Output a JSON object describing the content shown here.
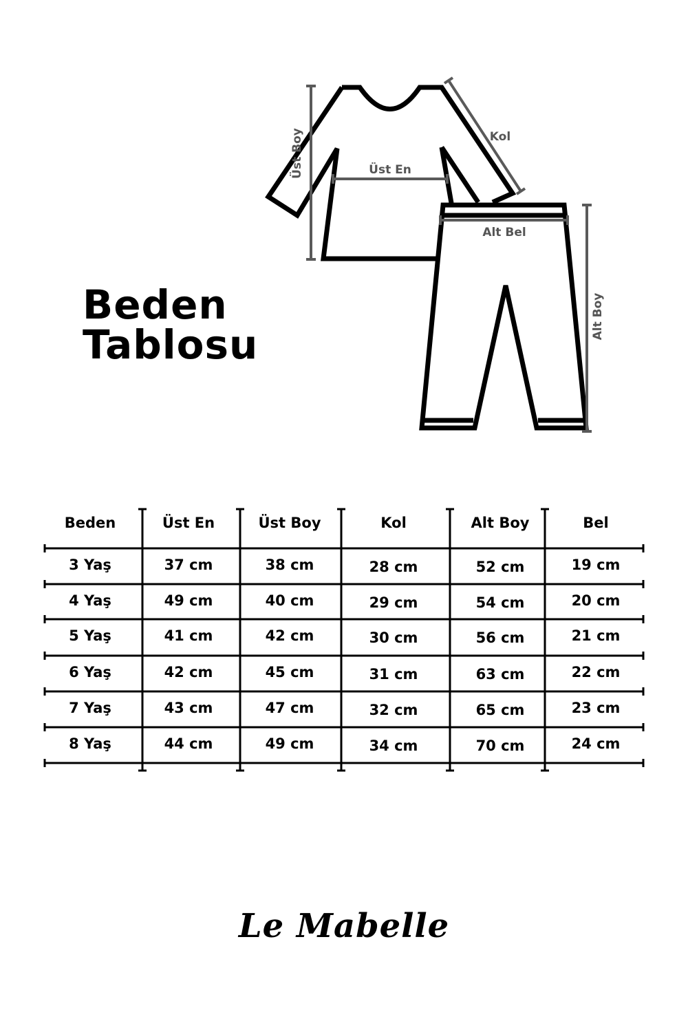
{
  "title": {
    "line1": "Beden",
    "line2": "Tablosu"
  },
  "diagram": {
    "labels": {
      "ust_boy": "Üst Boy",
      "ust_en": "Üst En",
      "kol": "Kol",
      "alt_bel": "Alt Bel",
      "alt_boy": "Alt Boy"
    },
    "colors": {
      "outline": "#000000",
      "measure": "#5a5a5a"
    }
  },
  "table": {
    "headers": [
      "Beden",
      "Üst En",
      "Üst Boy",
      "Kol",
      "Alt Boy",
      "Bel"
    ],
    "rows": [
      [
        "3 Yaş",
        "37 cm",
        "38 cm",
        "28 cm",
        "52 cm",
        "19 cm"
      ],
      [
        "4 Yaş",
        "49 cm",
        "40 cm",
        "29 cm",
        "54 cm",
        "20 cm"
      ],
      [
        "5 Yaş",
        "41 cm",
        "42 cm",
        "30 cm",
        "56 cm",
        "21 cm"
      ],
      [
        "6 Yaş",
        "42 cm",
        "45 cm",
        "31 cm",
        "63 cm",
        "22 cm"
      ],
      [
        "7 Yaş",
        "43 cm",
        "47 cm",
        "32 cm",
        "65 cm",
        "23 cm"
      ],
      [
        "8 Yaş",
        "44 cm",
        "49 cm",
        "34 cm",
        "70 cm",
        "24 cm"
      ]
    ]
  },
  "brand": {
    "logo_text": "Le Mabelle"
  }
}
